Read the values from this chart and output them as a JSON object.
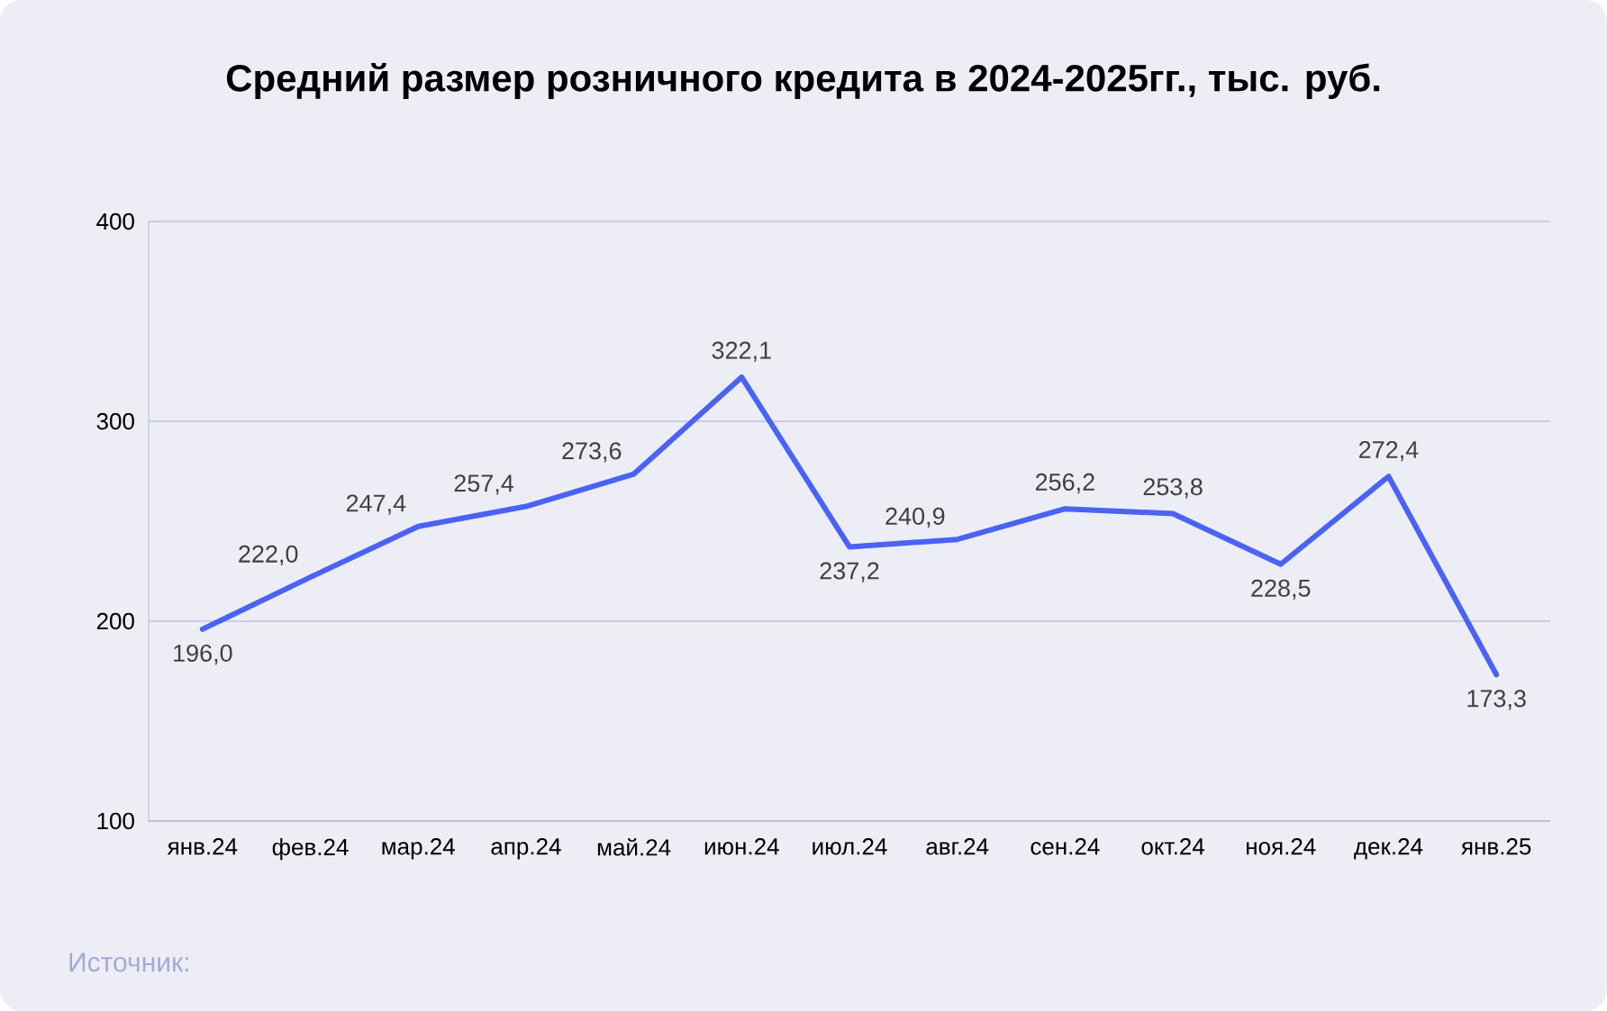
{
  "chart_data": {
    "type": "line",
    "title": "Средний размер розничного кредита в 2024-2025гг., тыс. руб.",
    "categories": [
      "янв.24",
      "фев.24",
      "мар.24",
      "апр.24",
      "май.24",
      "июн.24",
      "июл.24",
      "авг.24",
      "сен.24",
      "окт.24",
      "ноя.24",
      "дек.24",
      "янв.25"
    ],
    "values": [
      196.0,
      222.0,
      247.4,
      257.4,
      273.6,
      322.1,
      237.2,
      240.9,
      256.2,
      253.8,
      228.5,
      272.4,
      173.3
    ],
    "value_labels": [
      "196,0",
      "222,0",
      "247,4",
      "257,4",
      "273,6",
      "322,1",
      "237,2",
      "240,9",
      "256,2",
      "253,8",
      "228,5",
      "272,4",
      "173,3"
    ],
    "color": "#4a63f5",
    "marker": "none",
    "line_style": "solid",
    "ylim": [
      100,
      400
    ],
    "yticks": [
      100,
      200,
      300,
      400
    ],
    "grid": "y",
    "annotations": [
      "Источник:"
    ]
  }
}
